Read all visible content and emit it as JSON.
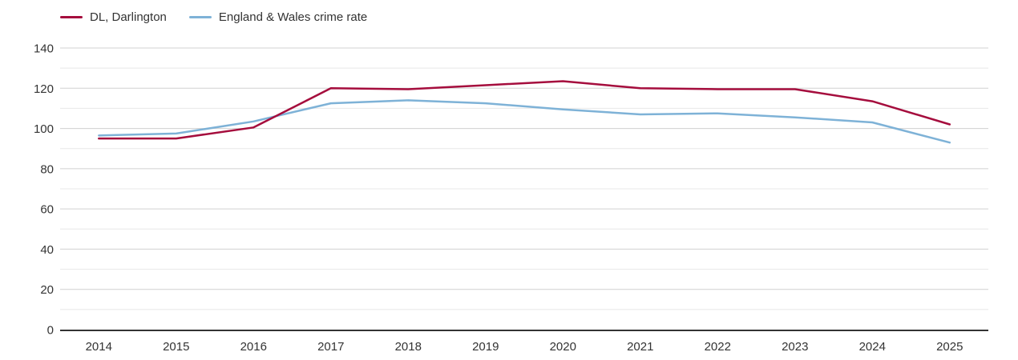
{
  "chart_data": {
    "type": "line",
    "title": "",
    "xlabel": "",
    "ylabel": "",
    "x": [
      "2014",
      "2015",
      "2016",
      "2017",
      "2018",
      "2019",
      "2020",
      "2021",
      "2022",
      "2023",
      "2024",
      "2025"
    ],
    "series": [
      {
        "name": "DL, Darlington",
        "color": "#a50d3d",
        "values": [
          95,
          95,
          100.5,
          120,
          119.5,
          121.5,
          123.5,
          120,
          119.5,
          119.5,
          113.5,
          102
        ]
      },
      {
        "name": "England & Wales crime rate",
        "color": "#7eb2d7",
        "values": [
          96.5,
          97.5,
          103.5,
          112.5,
          114,
          112.5,
          109.5,
          107,
          107.5,
          105.5,
          103,
          93
        ]
      }
    ],
    "ylim": [
      0,
      140
    ],
    "y_ticks": [
      0,
      20,
      40,
      60,
      80,
      100,
      120,
      140
    ],
    "minor_tick_step": 10,
    "grid": true,
    "legend_position": "top-left",
    "colors": {
      "major_gridline": "#d0d0d0",
      "minor_gridline": "#e8e8e8",
      "axis_line": "#333333",
      "tick_label": "#333333"
    }
  }
}
